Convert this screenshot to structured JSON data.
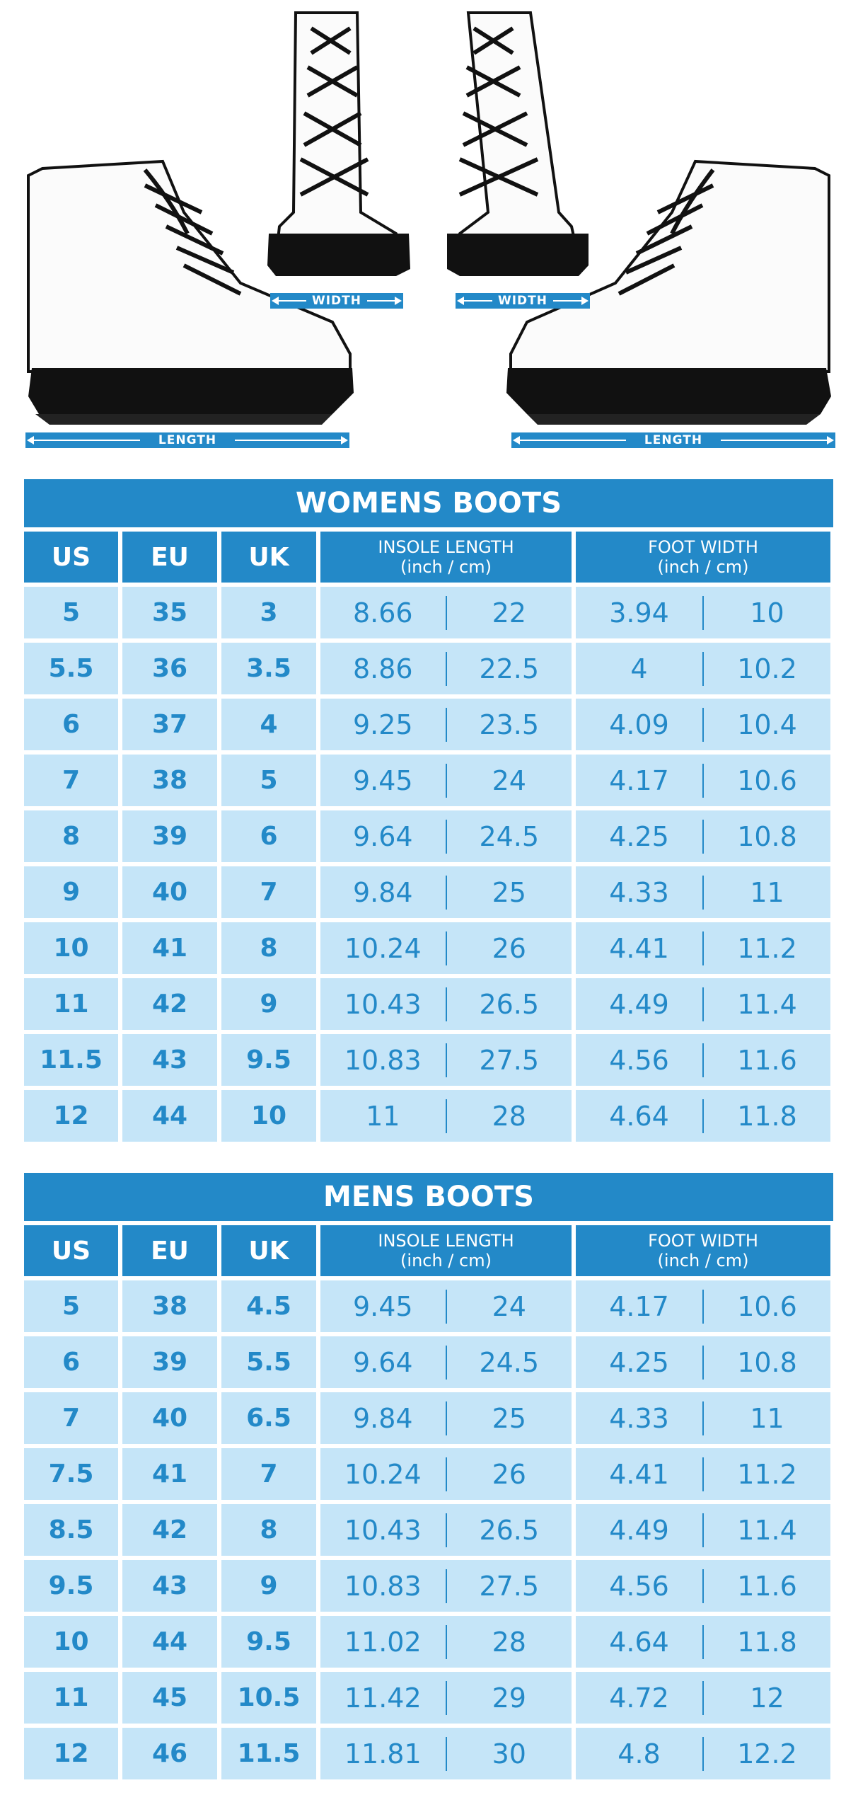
{
  "measures": {
    "width_left": "WIDTH",
    "width_right": "WIDTH",
    "length_left": "LENGTH",
    "length_right": "LENGTH"
  },
  "colors": {
    "accent": "#2389c8",
    "cell_bg": "#c5e5f8"
  },
  "womens": {
    "title": "WOMENS BOOTS",
    "headers": {
      "us": "US",
      "eu": "EU",
      "uk": "UK",
      "insole": "INSOLE LENGTH",
      "insole_unit": "(inch / cm)",
      "foot": "FOOT WIDTH",
      "foot_unit": "(inch / cm)"
    },
    "rows": [
      [
        "5",
        "35",
        "3",
        "8.66",
        "22",
        "3.94",
        "10"
      ],
      [
        "5.5",
        "36",
        "3.5",
        "8.86",
        "22.5",
        "4",
        "10.2"
      ],
      [
        "6",
        "37",
        "4",
        "9.25",
        "23.5",
        "4.09",
        "10.4"
      ],
      [
        "7",
        "38",
        "5",
        "9.45",
        "24",
        "4.17",
        "10.6"
      ],
      [
        "8",
        "39",
        "6",
        "9.64",
        "24.5",
        "4.25",
        "10.8"
      ],
      [
        "9",
        "40",
        "7",
        "9.84",
        "25",
        "4.33",
        "11"
      ],
      [
        "10",
        "41",
        "8",
        "10.24",
        "26",
        "4.41",
        "11.2"
      ],
      [
        "11",
        "42",
        "9",
        "10.43",
        "26.5",
        "4.49",
        "11.4"
      ],
      [
        "11.5",
        "43",
        "9.5",
        "10.83",
        "27.5",
        "4.56",
        "11.6"
      ],
      [
        "12",
        "44",
        "10",
        "11",
        "28",
        "4.64",
        "11.8"
      ]
    ]
  },
  "mens": {
    "title": "MENS BOOTS",
    "headers": {
      "us": "US",
      "eu": "EU",
      "uk": "UK",
      "insole": "INSOLE LENGTH",
      "insole_unit": "(inch / cm)",
      "foot": "FOOT WIDTH",
      "foot_unit": "(inch / cm)"
    },
    "rows": [
      [
        "5",
        "38",
        "4.5",
        "9.45",
        "24",
        "4.17",
        "10.6"
      ],
      [
        "6",
        "39",
        "5.5",
        "9.64",
        "24.5",
        "4.25",
        "10.8"
      ],
      [
        "7",
        "40",
        "6.5",
        "9.84",
        "25",
        "4.33",
        "11"
      ],
      [
        "7.5",
        "41",
        "7",
        "10.24",
        "26",
        "4.41",
        "11.2"
      ],
      [
        "8.5",
        "42",
        "8",
        "10.43",
        "26.5",
        "4.49",
        "11.4"
      ],
      [
        "9.5",
        "43",
        "9",
        "10.83",
        "27.5",
        "4.56",
        "11.6"
      ],
      [
        "10",
        "44",
        "9.5",
        "11.02",
        "28",
        "4.64",
        "11.8"
      ],
      [
        "11",
        "45",
        "10.5",
        "11.42",
        "29",
        "4.72",
        "12"
      ],
      [
        "12",
        "46",
        "11.5",
        "11.81",
        "30",
        "4.8",
        "12.2"
      ]
    ]
  }
}
